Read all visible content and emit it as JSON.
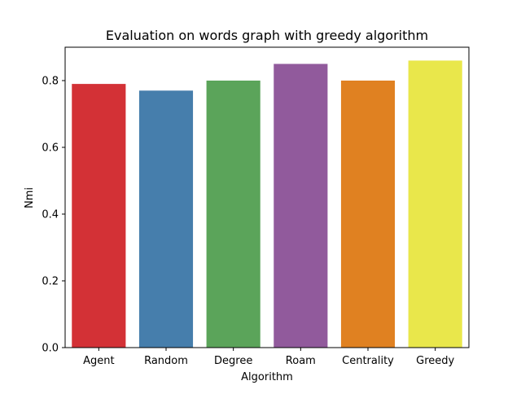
{
  "chart_data": {
    "type": "bar",
    "title": "Evaluation on words graph with greedy algorithm",
    "xlabel": "Algorithm",
    "ylabel": "Nmi",
    "categories": [
      "Agent",
      "Random",
      "Degree",
      "Roam",
      "Centrality",
      "Greedy"
    ],
    "values": [
      0.79,
      0.77,
      0.8,
      0.85,
      0.8,
      0.86
    ],
    "colors": [
      "#d33136",
      "#467eac",
      "#5ba45a",
      "#915a9c",
      "#e08121",
      "#e9e74b"
    ],
    "ylim": [
      0,
      0.9
    ],
    "yticks": [
      0.0,
      0.2,
      0.4,
      0.6,
      0.8
    ],
    "ytick_labels": [
      "0.0",
      "0.2",
      "0.4",
      "0.6",
      "0.8"
    ],
    "grid": false,
    "legend": "none"
  }
}
